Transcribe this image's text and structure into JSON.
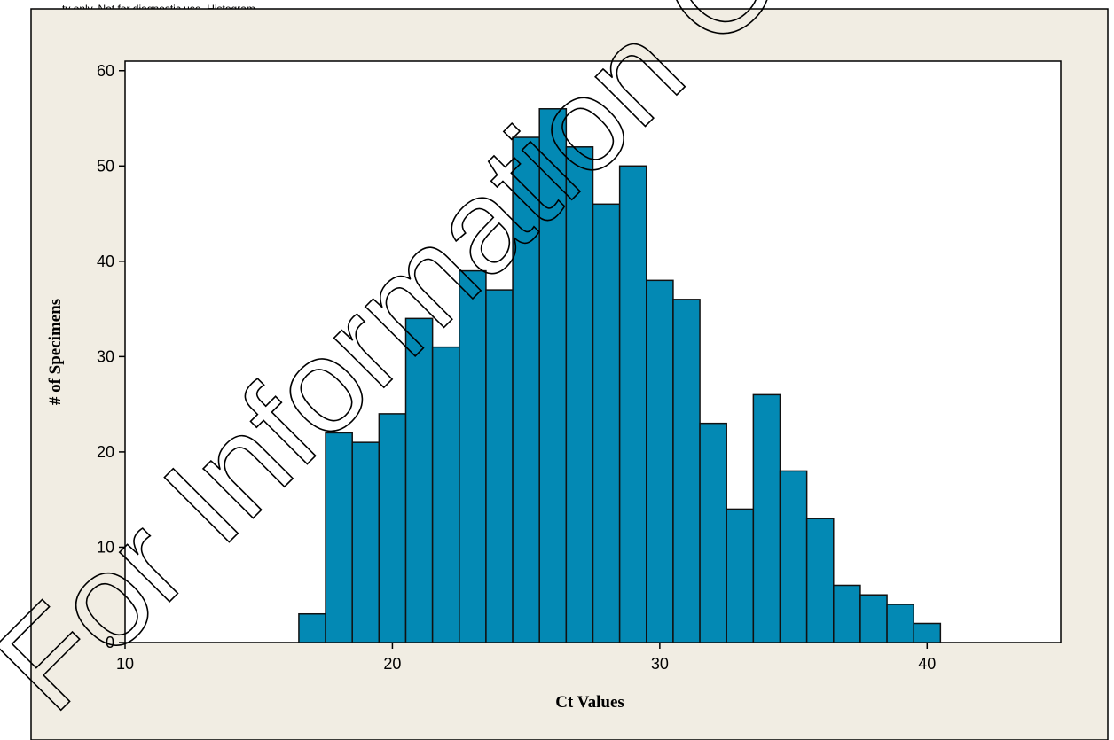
{
  "header_text": "...ty only. Not for diagnostic use. Histogram...",
  "watermark": "For Information Only - Not",
  "colors": {
    "bar": "#0389B4",
    "bar_edge": "#111111",
    "frame_bg": "#F1EDE3",
    "plot_bg": "#FFFFFF"
  },
  "chart_data": {
    "type": "bar",
    "title": "",
    "xlabel": "Ct Values",
    "ylabel": "# of Specimens",
    "xlim": [
      10,
      45
    ],
    "ylim": [
      0,
      61
    ],
    "xticks": [
      10,
      20,
      30,
      40
    ],
    "yticks": [
      0,
      10,
      20,
      30,
      40,
      50,
      60
    ],
    "bin_width": 1,
    "bins": [
      17,
      18,
      19,
      20,
      21,
      22,
      23,
      24,
      25,
      26,
      27,
      28,
      29,
      30,
      31,
      32,
      33,
      34,
      35,
      36,
      37,
      38,
      39,
      40
    ],
    "values": [
      3,
      22,
      21,
      24,
      34,
      31,
      39,
      37,
      53,
      56,
      52,
      46,
      50,
      38,
      36,
      23,
      14,
      26,
      18,
      13,
      6,
      5,
      4,
      2
    ],
    "grid": false,
    "legend": "none"
  }
}
